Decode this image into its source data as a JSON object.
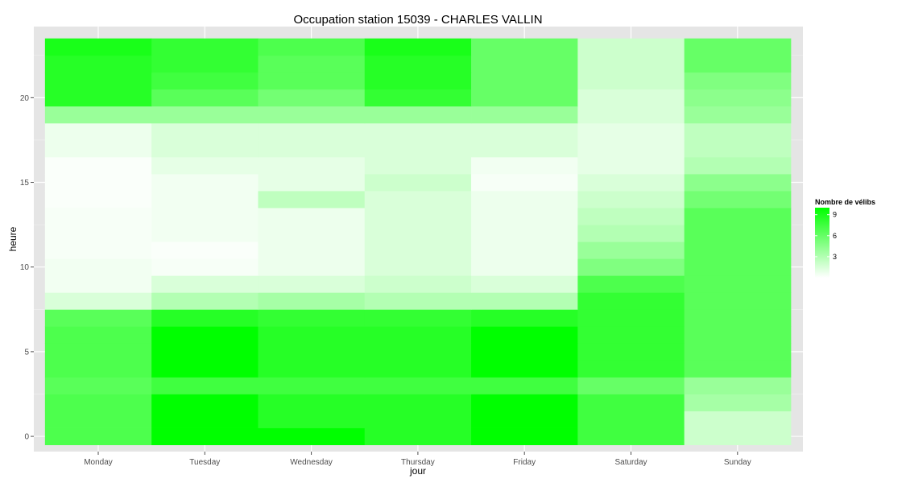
{
  "chart_data": {
    "type": "heatmap",
    "title": "Occupation station 15039 - CHARLES VALLIN",
    "xlabel": "jour",
    "ylabel": "heure",
    "x": [
      "Monday",
      "Tuesday",
      "Wednesday",
      "Thursday",
      "Friday",
      "Saturday",
      "Sunday"
    ],
    "y": [
      0,
      1,
      2,
      3,
      4,
      5,
      6,
      7,
      8,
      9,
      10,
      11,
      12,
      13,
      14,
      15,
      16,
      17,
      18,
      19,
      20,
      21,
      22,
      23
    ],
    "yticks": [
      0,
      5,
      10,
      15,
      20
    ],
    "ylim": [
      -0.9,
      24.2
    ],
    "grid": true,
    "colors": {
      "low": "#ffffff",
      "high": "#00ff00",
      "panel": "#e5e5e5",
      "gridline": "#ffffff"
    },
    "legend": {
      "title": "Nombre de vélibs",
      "ticks": [
        3,
        6,
        9
      ],
      "min": 0,
      "max": 10,
      "placement": "right"
    },
    "values": [
      [
        7,
        10,
        10,
        8.5,
        10,
        7.5,
        2
      ],
      [
        7,
        10,
        8.5,
        8.5,
        10,
        7.5,
        2
      ],
      [
        7,
        10,
        8.5,
        8.5,
        10,
        7.5,
        3.5
      ],
      [
        6.5,
        7.5,
        7.5,
        7.5,
        7.5,
        6,
        4
      ],
      [
        7,
        10,
        8.5,
        8.5,
        10,
        8,
        6.5
      ],
      [
        7,
        10,
        8.5,
        8.5,
        10,
        8,
        6.5
      ],
      [
        7,
        10,
        8.5,
        8.5,
        10,
        8,
        6.5
      ],
      [
        6.5,
        8.5,
        8,
        8,
        8.5,
        8,
        6.5
      ],
      [
        1.5,
        3,
        3.5,
        3,
        3,
        8,
        6.5
      ],
      [
        0.5,
        1.5,
        1.5,
        2,
        1.5,
        7,
        6.5
      ],
      [
        0.5,
        0.3,
        0.7,
        1.5,
        0.7,
        5,
        6.5
      ],
      [
        0.3,
        0.2,
        0.7,
        1.5,
        0.7,
        4,
        6.5
      ],
      [
        0.3,
        0.5,
        0.7,
        1.5,
        0.7,
        3,
        6.5
      ],
      [
        0.3,
        0.5,
        0.7,
        1.5,
        0.7,
        2.5,
        6.5
      ],
      [
        0.2,
        0.5,
        2.5,
        1.5,
        0.7,
        2,
        5.5
      ],
      [
        0.2,
        0.5,
        1,
        2,
        0.3,
        1.5,
        4.5
      ],
      [
        0.2,
        1,
        1,
        1.5,
        0.5,
        1,
        3
      ],
      [
        0.7,
        1.5,
        1.5,
        1.5,
        1.5,
        1,
        2.5
      ],
      [
        0.7,
        1.5,
        1.5,
        1.5,
        1.5,
        1,
        2.5
      ],
      [
        4,
        4,
        4,
        4,
        4,
        1.5,
        4
      ],
      [
        8.5,
        6.5,
        5.5,
        8,
        6,
        1.5,
        4.5
      ],
      [
        8.5,
        7.5,
        6.5,
        8.5,
        6,
        2,
        5
      ],
      [
        8.5,
        8,
        6.5,
        8.5,
        6,
        2,
        6
      ],
      [
        9,
        8,
        7,
        9,
        6,
        2,
        6
      ]
    ]
  }
}
